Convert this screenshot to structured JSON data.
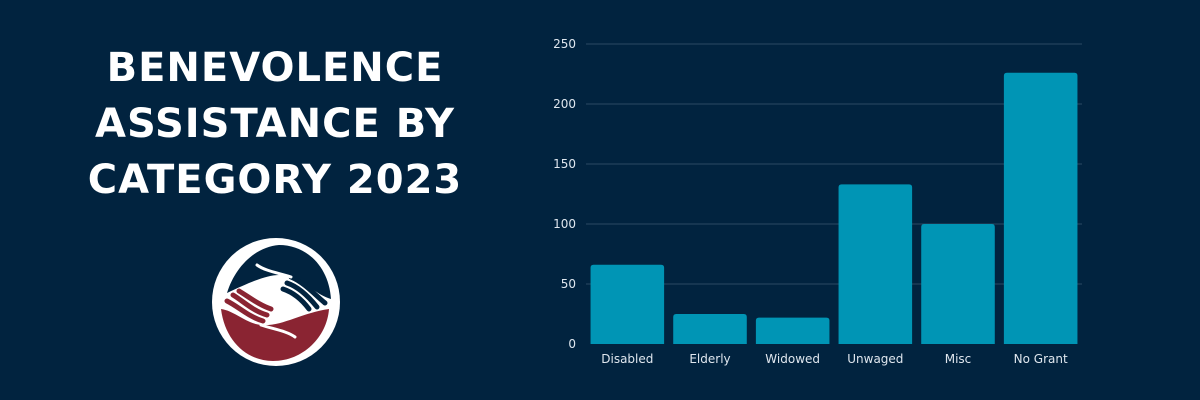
{
  "title": {
    "lines": [
      "BENEVOLENCE",
      "ASSISTANCE BY",
      "CATEGORY 2023"
    ]
  },
  "logo": {
    "icon": "hands-logo-icon"
  },
  "colors": {
    "background": "#01233f",
    "bar": "#0095b5",
    "grid": "#2c4a63",
    "text": "#ffffff",
    "logo_red": "#8a2432",
    "logo_navy": "#01233f"
  },
  "chart_data": {
    "type": "bar",
    "categories": [
      "Disabled",
      "Elderly",
      "Widowed",
      "Unwaged",
      "Misc",
      "No Grant"
    ],
    "values": [
      66,
      25,
      22,
      133,
      100,
      226
    ],
    "title": "",
    "xlabel": "",
    "ylabel": "",
    "ylim": [
      0,
      250
    ],
    "yticks": [
      0,
      50,
      100,
      150,
      200,
      250
    ],
    "grid": true,
    "legend": "none"
  }
}
